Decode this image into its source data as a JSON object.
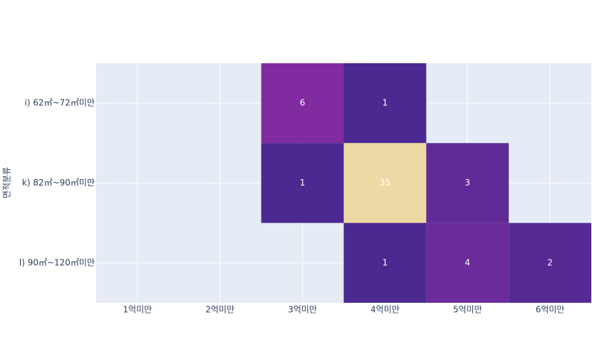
{
  "chart_data": {
    "type": "heatmap",
    "y_label": "면적분류",
    "x": [
      "1억미만",
      "2억미만",
      "3억미만",
      "4억미만",
      "5억미만",
      "6억미만"
    ],
    "y": [
      "i) 62㎡~72㎡미만",
      "k) 82㎡~90㎡미만",
      "l) 90㎡~120㎡미만"
    ],
    "z": [
      [
        null,
        null,
        6,
        1,
        null,
        null
      ],
      [
        null,
        null,
        1,
        35,
        3,
        null
      ],
      [
        null,
        null,
        null,
        1,
        4,
        2
      ]
    ],
    "colorscale": [
      "#4b2991",
      "#872ca2",
      "#c0369d",
      "#ea4f88",
      "#fa7876",
      "#f6a97a",
      "#edd9a3"
    ],
    "grid": true
  }
}
